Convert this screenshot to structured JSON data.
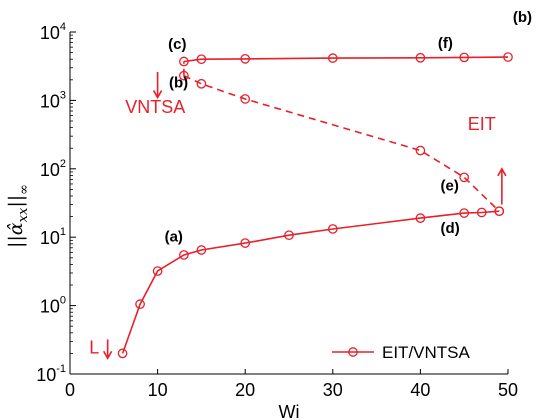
{
  "chart_data": {
    "type": "line",
    "panel_label": "(b)",
    "xlabel": "Wi",
    "ylabel_parts": [
      "||",
      "α̂",
      "xx",
      "||",
      "∞"
    ],
    "xlim": [
      0,
      50
    ],
    "ylim": [
      0.1,
      10000
    ],
    "yscale": "log",
    "xticks": [
      0,
      10,
      20,
      30,
      40,
      50
    ],
    "yticks": [
      {
        "value": 0.1,
        "base": "10",
        "exp": "-1"
      },
      {
        "value": 1,
        "base": "10",
        "exp": "0"
      },
      {
        "value": 10,
        "base": "10",
        "exp": "1"
      },
      {
        "value": 100,
        "base": "10",
        "exp": "2"
      },
      {
        "value": 1000,
        "base": "10",
        "exp": "3"
      },
      {
        "value": 10000,
        "base": "10",
        "exp": "4"
      }
    ],
    "colors": {
      "series": "#e8202a",
      "axis": "#000000"
    },
    "legend": {
      "label": "EIT/VNTSA",
      "position": "bottom-right"
    },
    "series": [
      {
        "style": "solid",
        "x": [
          6,
          8,
          10,
          13,
          15,
          20,
          25,
          30,
          40,
          45,
          47,
          49
        ],
        "y": [
          0.2,
          1.05,
          3.2,
          5.5,
          6.5,
          8.2,
          10.7,
          13.2,
          19,
          22.5,
          23,
          24
        ]
      },
      {
        "style": "solid",
        "x": [
          13,
          15,
          20,
          30,
          40,
          45,
          50
        ],
        "y": [
          3700,
          4000,
          4050,
          4150,
          4200,
          4250,
          4300
        ]
      },
      {
        "style": "dashed",
        "x": [
          13,
          15,
          20,
          40,
          45,
          49
        ],
        "y": [
          2300,
          1750,
          1050,
          185,
          75,
          24
        ]
      },
      {
        "style": "dashed-connector",
        "x": [
          13,
          13
        ],
        "y": [
          2300,
          3700
        ]
      }
    ],
    "annotations": [
      {
        "text": "(a)",
        "x": 10.8,
        "y": 8.6,
        "kind": "bold"
      },
      {
        "text": "(b)",
        "x": 11.3,
        "y": 1550,
        "kind": "bold"
      },
      {
        "text": "(c)",
        "x": 11.2,
        "y": 5600,
        "kind": "bold"
      },
      {
        "text": "(d)",
        "x": 42.3,
        "y": 11.5,
        "kind": "bold"
      },
      {
        "text": "(e)",
        "x": 42.3,
        "y": 48,
        "kind": "bold"
      },
      {
        "text": "(f)",
        "x": 42.0,
        "y": 5800,
        "kind": "bold"
      },
      {
        "text": "VNTSA",
        "x": 6.3,
        "y": 650,
        "kind": "red"
      },
      {
        "text": "EIT",
        "x": 45.4,
        "y": 370,
        "kind": "red"
      },
      {
        "text": "L",
        "x": 2.2,
        "y": 0.2,
        "kind": "red"
      }
    ],
    "arrows": [
      {
        "x": 10.0,
        "y_from": 2600,
        "y_to": 1100,
        "direction": "down"
      },
      {
        "x": 49.3,
        "y_from": 30,
        "y_to": 100,
        "direction": "up"
      },
      {
        "x": 4.3,
        "y_from": 0.32,
        "y_to": 0.17,
        "direction": "down"
      }
    ]
  }
}
